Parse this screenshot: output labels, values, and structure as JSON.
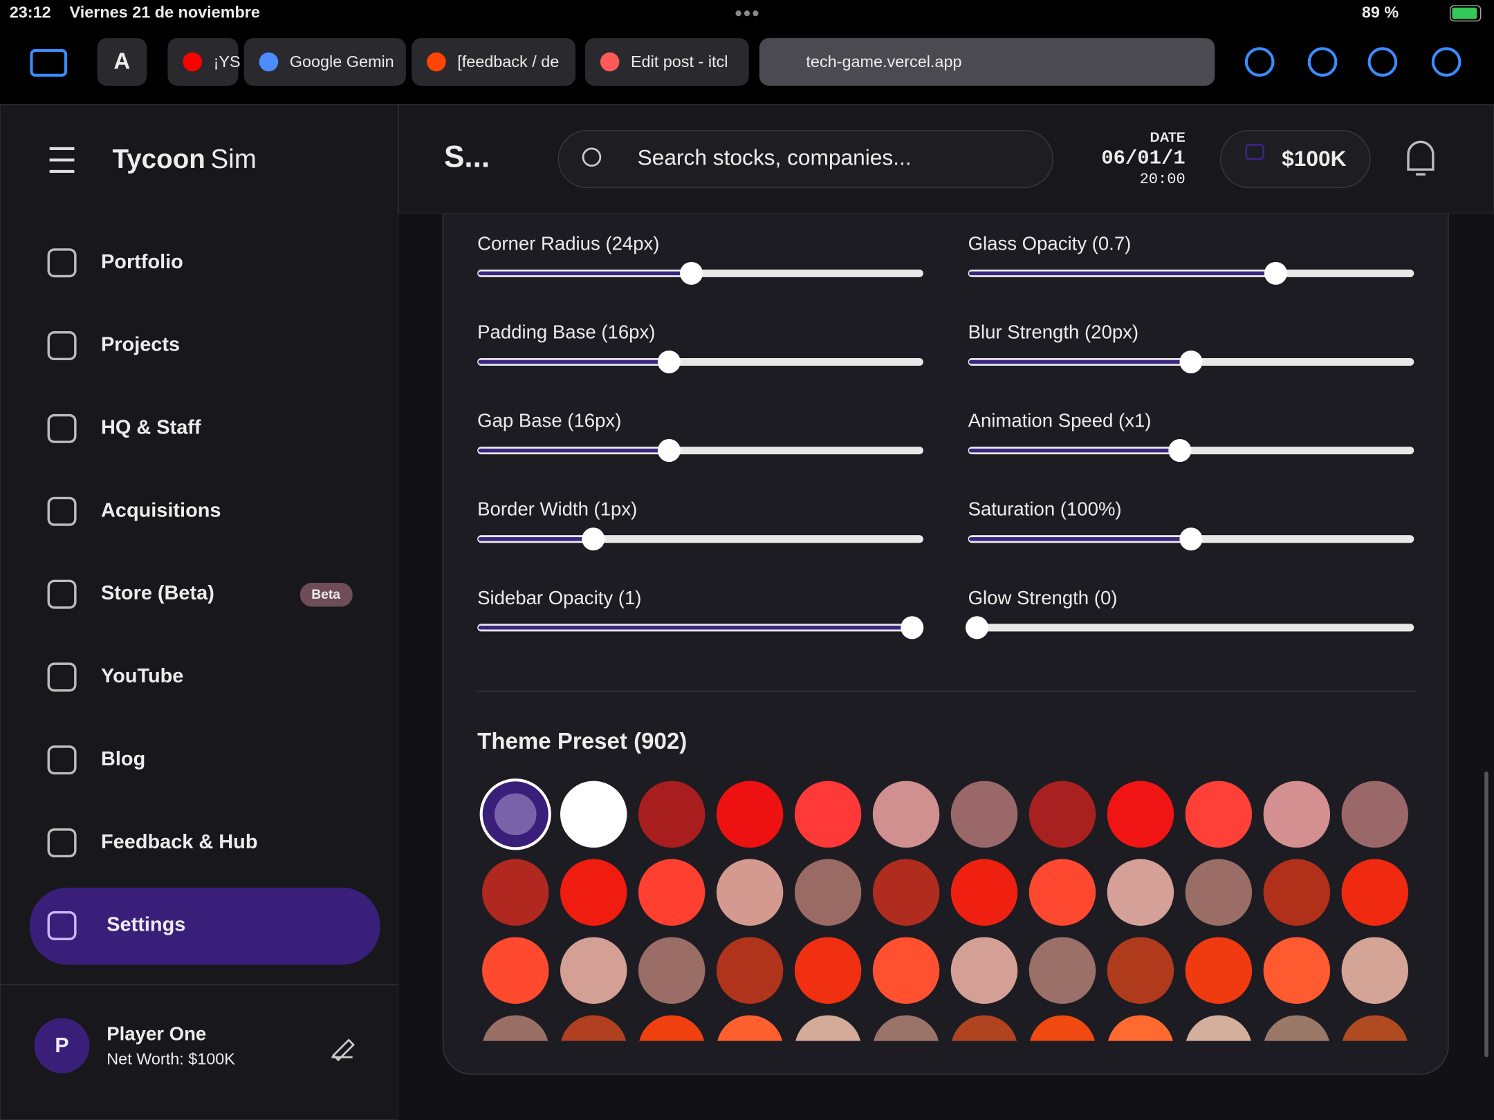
{
  "status_bar": {
    "time": "23:12",
    "date": "Viernes 21 de noviembre",
    "battery": "89 %"
  },
  "browser": {
    "tabs": [
      "¡YS",
      "Google Gemin",
      "[feedback / de",
      "Edit post - itcl"
    ],
    "active_url": "tech-game.vercel.app"
  },
  "sidebar": {
    "brand": [
      "Tycoon",
      "Sim"
    ],
    "nav": [
      "Portfolio",
      "Projects",
      "HQ & Staff",
      "Acquisitions",
      "Store (Beta)",
      "YouTube",
      "Blog",
      "Feedback & Hub",
      "Settings"
    ],
    "beta_badge": "Beta",
    "user": {
      "initial": "P",
      "name": "Player One",
      "net_worth": "Net Worth: $100K"
    }
  },
  "header": {
    "title": "S...",
    "search_placeholder": "Search stocks, companies...",
    "date_label": "DATE",
    "date": "06/01/1",
    "time": "20:00",
    "balance": "$100K"
  },
  "settings": {
    "sliders": [
      [
        "Corner Radius (24px)",
        "Glass Opacity (0.7)"
      ],
      [
        "Padding Base (16px)",
        "Blur Strength (20px)"
      ],
      [
        "Gap Base (16px)",
        "Animation Speed (x1)"
      ],
      [
        "Border Width (1px)",
        "Saturation (100%)"
      ],
      [
        "Sidebar Opacity (1)",
        "Glow Strength (0)"
      ]
    ],
    "theme_preset_title": "Theme Preset (902)",
    "swatches": [
      "#3a1f7a",
      "#ffffff",
      "#a81e1e",
      "#ee1111",
      "#ff3838",
      "#d09090",
      "#9a6868",
      "#a82020",
      "#f01414",
      "#ff4038",
      "#d49090",
      "#9a6868",
      "#b02820",
      "#f01c10",
      "#ff4030",
      "#d49a90",
      "#9a6a64",
      "#b02c1e",
      "#f02010",
      "#ff4830",
      "#d4a098",
      "#9a6e66",
      "#b0301a",
      "#f02a10",
      "#ff4a30",
      "#d4a096",
      "#9a6e66",
      "#b0341c",
      "#f03010",
      "#ff5030",
      "#d4a096",
      "#9a7068",
      "#b03a1c",
      "#f03a10",
      "#ff5a30",
      "#d4a496",
      "#9a7066",
      "#b04020",
      "#f04010",
      "#ff6030",
      "#d4aa98",
      "#9a7468",
      "#b04420",
      "#f04a10",
      "#ff6a30",
      "#d4b09c",
      "#9a7868",
      "#b04a20"
    ]
  }
}
